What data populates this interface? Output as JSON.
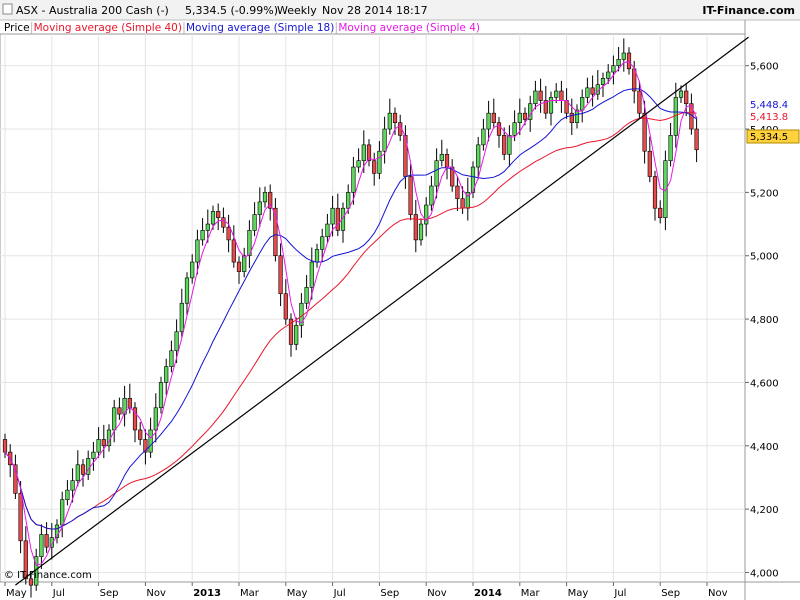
{
  "header": {
    "instrument": "ASX - Australia 200 Cash (-)",
    "quote": "5,334.5 (-0.99%)",
    "period": "Weekly",
    "datetime": "Nov 28 2014 18:17",
    "brand": "IT-Finance.com"
  },
  "legend": [
    {
      "label": "Price",
      "color": "#000000"
    },
    {
      "label": "Moving average (Simple 40)",
      "color": "#e8172c"
    },
    {
      "label": "Moving average (Simple 18)",
      "color": "#1414d2"
    },
    {
      "label": "Moving average (Simple 4)",
      "color": "#e619e6"
    }
  ],
  "watermark": "© IT-Finance.com",
  "badges": [
    {
      "label": "5,448.4",
      "value": 5448.4,
      "color": "#1414d2",
      "fill": "#ffffff"
    },
    {
      "label": "5,413.8",
      "value": 5413.8,
      "color": "#e8172c",
      "fill": "#ffffff"
    },
    {
      "label": "5,334.5",
      "value": 5334.5,
      "color": "#000000",
      "fill": "#ffd23c"
    }
  ],
  "chart_data": {
    "type": "candlestick",
    "title": "ASX - Australia 200 Cash (-)",
    "ylim": [
      3970,
      5700
    ],
    "y_ticks": [
      {
        "value": 4000,
        "label": "4,000"
      },
      {
        "value": 4200,
        "label": "4,200"
      },
      {
        "value": 4400,
        "label": "4,400"
      },
      {
        "value": 4600,
        "label": "4,600"
      },
      {
        "value": 4800,
        "label": "4,800"
      },
      {
        "value": 5000,
        "label": "5,000"
      },
      {
        "value": 5200,
        "label": "5,200"
      },
      {
        "value": 5400,
        "label": "5,400"
      },
      {
        "value": 5600,
        "label": "5,600"
      }
    ],
    "x_ticks": [
      {
        "week": 0,
        "label": "May",
        "bold": false
      },
      {
        "week": 9,
        "label": "Jul",
        "bold": false
      },
      {
        "week": 18,
        "label": "Sep",
        "bold": false
      },
      {
        "week": 27,
        "label": "Nov",
        "bold": false
      },
      {
        "week": 36,
        "label": "2013",
        "bold": true
      },
      {
        "week": 45,
        "label": "Mar",
        "bold": false
      },
      {
        "week": 54,
        "label": "May",
        "bold": false
      },
      {
        "week": 63,
        "label": "Jul",
        "bold": false
      },
      {
        "week": 72,
        "label": "Sep",
        "bold": false
      },
      {
        "week": 81,
        "label": "Nov",
        "bold": false
      },
      {
        "week": 90,
        "label": "2014",
        "bold": true
      },
      {
        "week": 99,
        "label": "Mar",
        "bold": false
      },
      {
        "week": 108,
        "label": "May",
        "bold": false
      },
      {
        "week": 117,
        "label": "Jul",
        "bold": false
      },
      {
        "week": 126,
        "label": "Sep",
        "bold": false
      },
      {
        "week": 135,
        "label": "Nov",
        "bold": false
      }
    ],
    "close": [
      4380,
      4340,
      4250,
      4100,
      3980,
      3960,
      4050,
      4120,
      4080,
      4110,
      4150,
      4230,
      4260,
      4290,
      4340,
      4310,
      4360,
      4380,
      4420,
      4400,
      4450,
      4520,
      4500,
      4550,
      4520,
      4450,
      4420,
      4380,
      4450,
      4520,
      4600,
      4650,
      4700,
      4760,
      4850,
      4930,
      4980,
      5050,
      5080,
      5100,
      5140,
      5120,
      5090,
      5050,
      4980,
      4950,
      5000,
      5080,
      5130,
      5170,
      5200,
      5150,
      5000,
      4880,
      4800,
      4720,
      4780,
      4850,
      4900,
      4980,
      5020,
      5060,
      5100,
      5150,
      5080,
      5150,
      5200,
      5280,
      5300,
      5350,
      5300,
      5260,
      5330,
      5400,
      5450,
      5420,
      5380,
      5250,
      5130,
      5050,
      5100,
      5160,
      5220,
      5300,
      5320,
      5280,
      5220,
      5180,
      5150,
      5200,
      5280,
      5350,
      5400,
      5450,
      5420,
      5380,
      5320,
      5380,
      5420,
      5450,
      5430,
      5480,
      5520,
      5490,
      5450,
      5500,
      5520,
      5490,
      5450,
      5420,
      5460,
      5500,
      5530,
      5510,
      5540,
      5560,
      5580,
      5600,
      5620,
      5640,
      5590,
      5520,
      5450,
      5330,
      5250,
      5150,
      5120,
      5300,
      5380,
      5500,
      5520,
      5480,
      5400,
      5334.5
    ],
    "ma40_last": 5413.8,
    "ma18_last": 5448.4,
    "trendline": {
      "from": {
        "week": 2,
        "value": 3960
      },
      "to": {
        "week": 143,
        "value": 5690
      }
    }
  }
}
